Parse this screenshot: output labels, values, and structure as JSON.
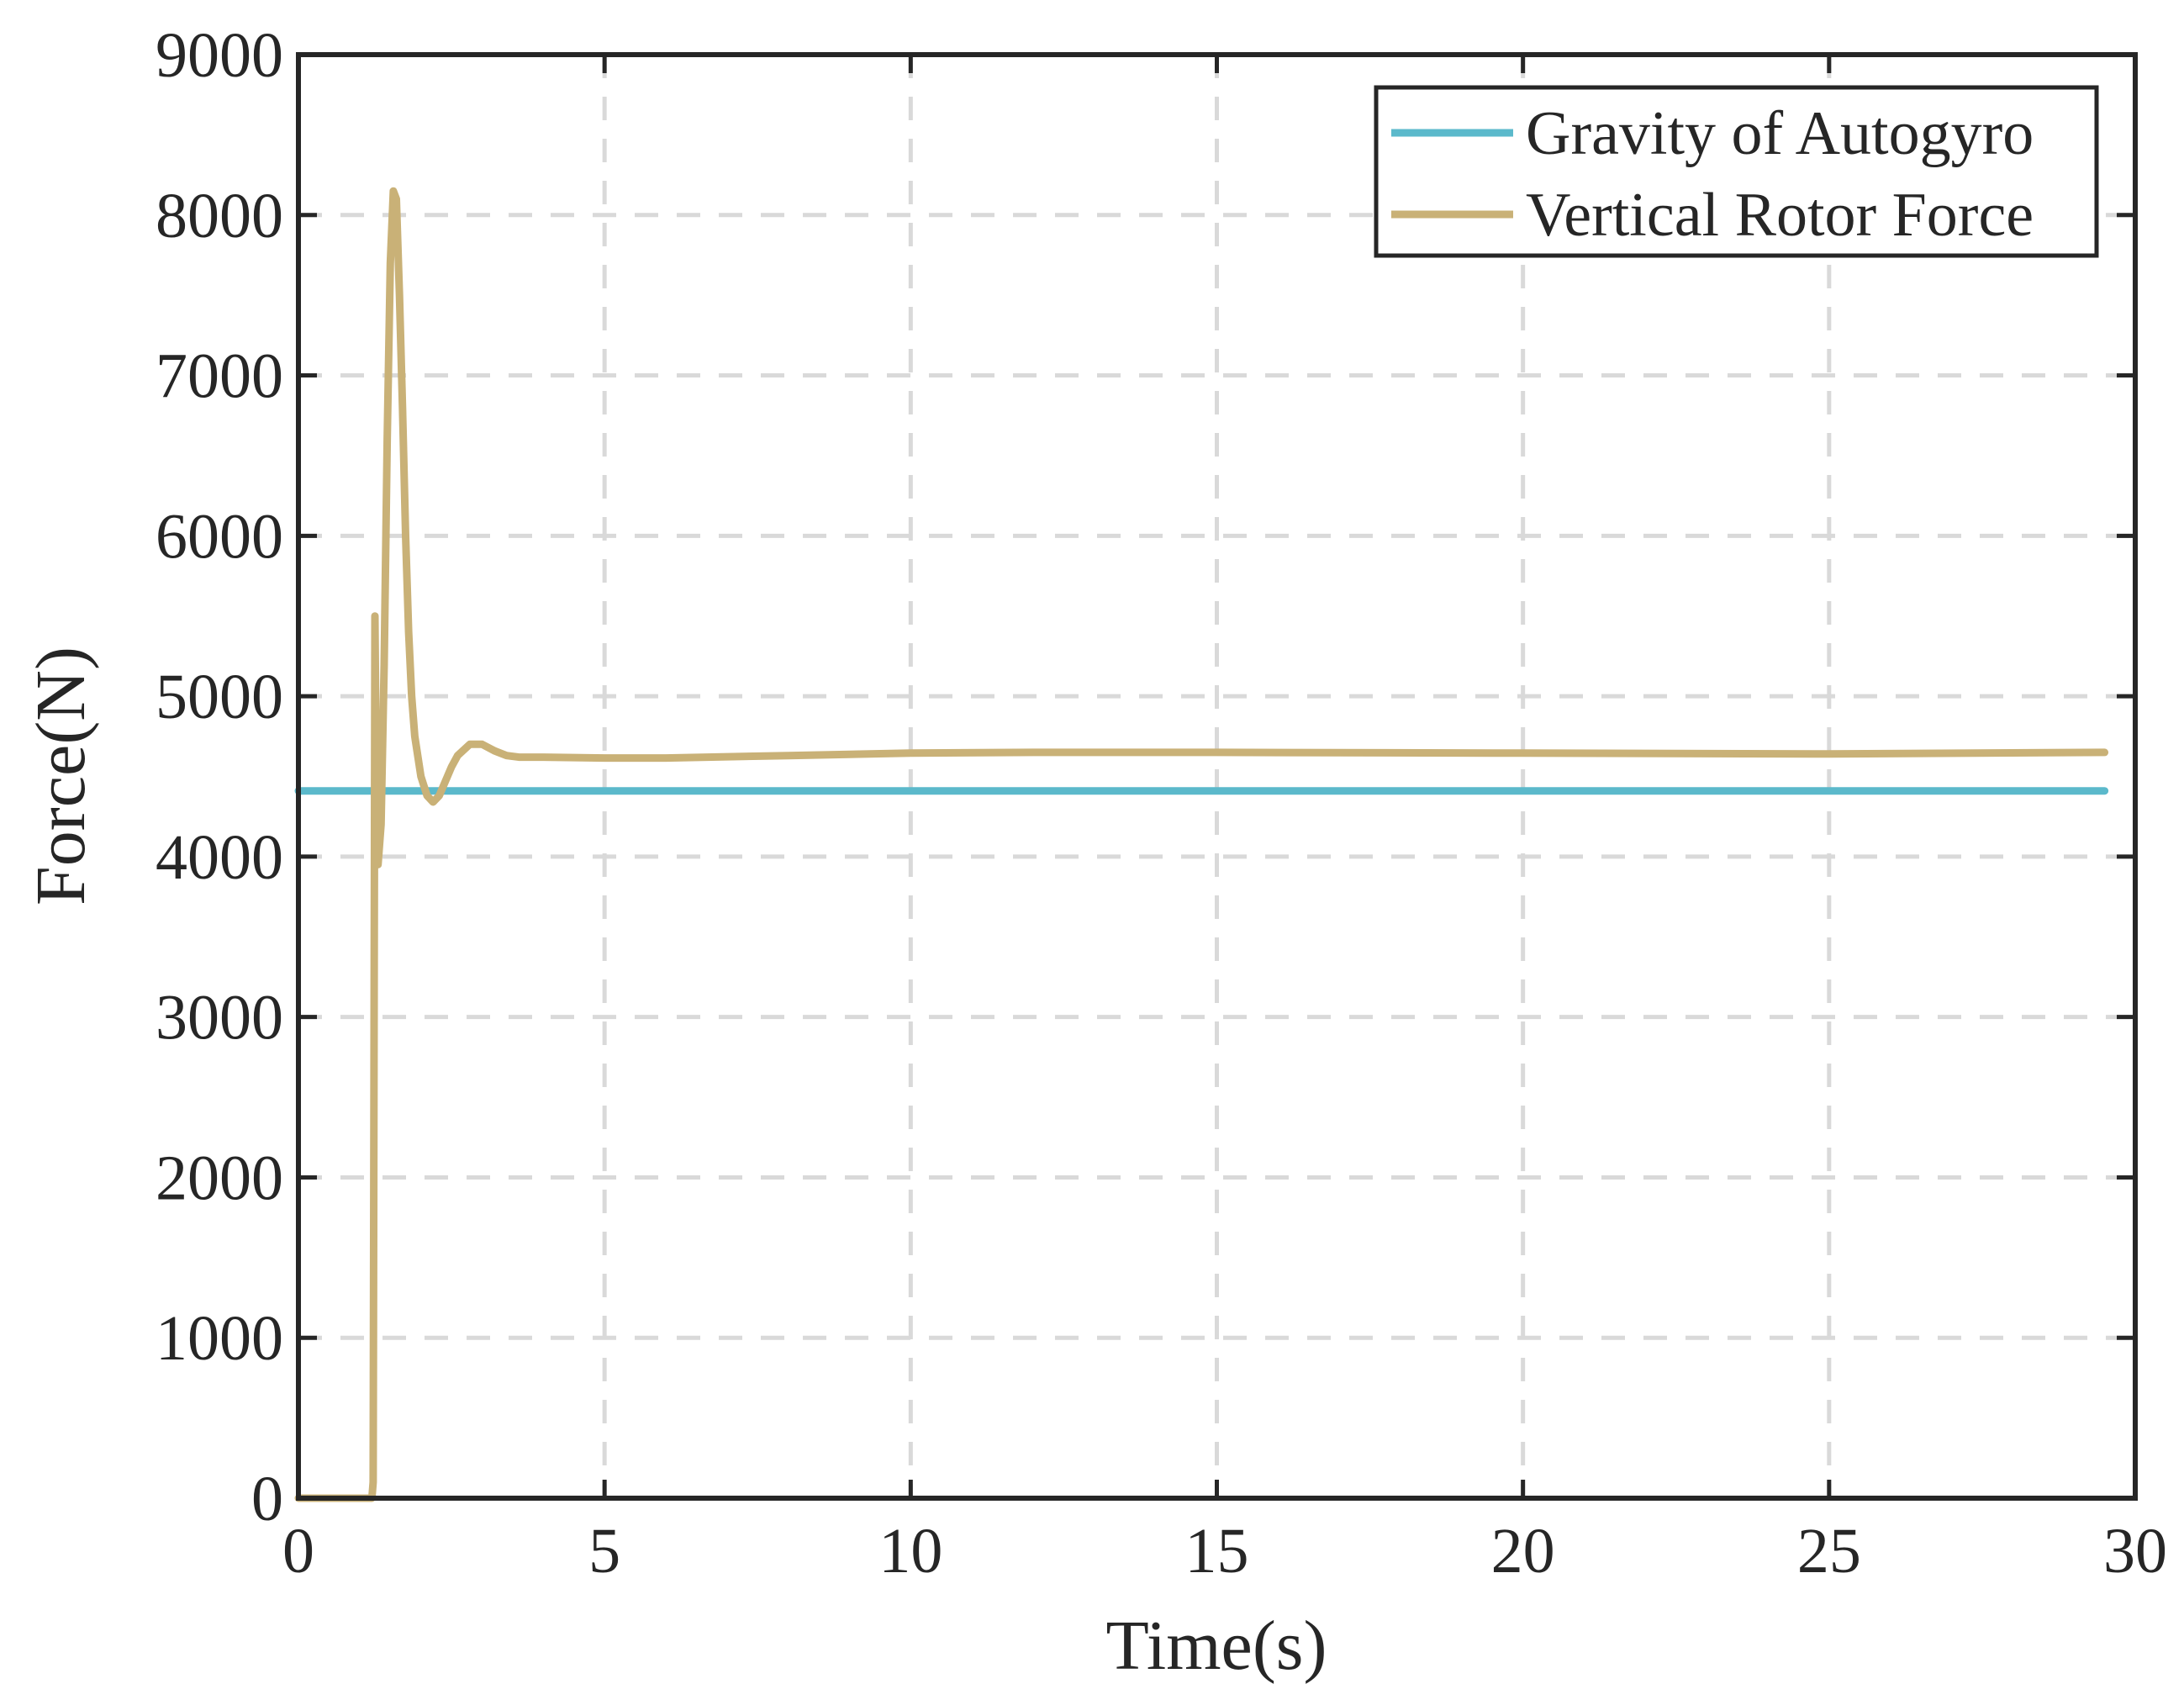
{
  "chart_data": {
    "type": "line",
    "title": "",
    "xlabel": "Time(s)",
    "ylabel": "Force(N)",
    "xlim": [
      0,
      30
    ],
    "ylim": [
      0,
      9000
    ],
    "xticks": [
      0,
      5,
      10,
      15,
      20,
      25,
      30
    ],
    "yticks": [
      0,
      1000,
      2000,
      3000,
      4000,
      5000,
      6000,
      7000,
      8000,
      9000
    ],
    "xtick_labels": [
      "0",
      "5",
      "10",
      "15",
      "20",
      "25",
      "30"
    ],
    "ytick_labels": [
      "0",
      "1000",
      "2000",
      "3000",
      "4000",
      "5000",
      "6000",
      "7000",
      "8000",
      "9000"
    ],
    "grid": true,
    "legend_position": "top-right",
    "series": [
      {
        "name": "Gravity of Autogyro",
        "color": "#5BB9CB",
        "x": [
          0,
          29.5
        ],
        "y": [
          4410,
          4410
        ]
      },
      {
        "name": "Vertical Rotor Force",
        "color": "#C9B177",
        "x": [
          0,
          1.2,
          1.22,
          1.25,
          1.28,
          1.3,
          1.35,
          1.4,
          1.45,
          1.5,
          1.55,
          1.6,
          1.65,
          1.7,
          1.75,
          1.8,
          1.85,
          1.9,
          2.0,
          2.1,
          2.2,
          2.3,
          2.4,
          2.5,
          2.6,
          2.8,
          3.0,
          3.2,
          3.4,
          3.6,
          3.8,
          4.0,
          5.0,
          6.0,
          8.0,
          10.0,
          12.0,
          15.0,
          20.0,
          25.0,
          29.5
        ],
        "y": [
          0,
          0,
          100,
          5500,
          4100,
          3950,
          4200,
          5200,
          6600,
          7700,
          8150,
          8100,
          7500,
          6800,
          6000,
          5400,
          5000,
          4750,
          4500,
          4380,
          4340,
          4380,
          4470,
          4560,
          4630,
          4700,
          4700,
          4660,
          4630,
          4620,
          4620,
          4620,
          4615,
          4615,
          4630,
          4645,
          4650,
          4650,
          4645,
          4640,
          4650
        ]
      }
    ]
  }
}
